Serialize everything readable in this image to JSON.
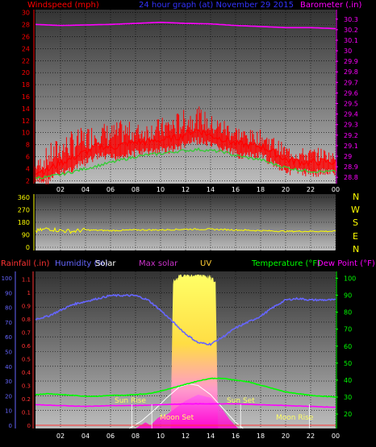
{
  "colors": {
    "background": "#000000",
    "wind": "#ff0000",
    "wind_avg": "#33cc33",
    "barometer": "#ff00ff",
    "direction": "#ffff00",
    "compass": "#ffff00",
    "rainfall": "#ff3333",
    "humidity": "#6666ff",
    "solar": "#ffff33",
    "max_solar": "#ffffff",
    "uv": "#ff66ff",
    "temperature": "#00ff00",
    "dew_point": "#ff00ff",
    "label_solar": "#ffffff",
    "label_max_solar": "#cc33cc",
    "label_uv": "#ffcc33",
    "sun_moon_text": "#ffff66"
  },
  "header": {
    "left_label": "Windspeed (mph)",
    "title": "24 hour graph (at)  November 29 2015",
    "right_label": "Barometer (.in)"
  },
  "compass": [
    "N",
    "W",
    "S",
    "E",
    "N"
  ],
  "bottom_header": {
    "rainfall": "Rainfall (.in)",
    "humidity": "Humidity (%)",
    "solar": "Solar",
    "max_solar": "Max solar",
    "uv": "UV",
    "temperature": "Temperature (°F)",
    "dew_point": "Dew Point (°F)"
  },
  "events": {
    "sun_rise": "Sun Rise",
    "sun_set": "Sun Set",
    "moon_set": "Moon Set",
    "moon_rise": "Moon Rise"
  },
  "chart_data": [
    {
      "type": "line",
      "title": "24 hour graph (at)  November 29 2015",
      "xlabel": "",
      "x_ticks": [
        "02",
        "04",
        "06",
        "08",
        "10",
        "12",
        "14",
        "16",
        "18",
        "20",
        "22",
        "00"
      ],
      "x_range_hours": [
        0,
        24
      ],
      "y_left_label": "Windspeed (mph)",
      "y_left_ticks": [
        2,
        4,
        6,
        8,
        10,
        12,
        14,
        16,
        18,
        20,
        22,
        24,
        26,
        28,
        30
      ],
      "y_left_range": [
        1.5,
        30.5
      ],
      "y_right_label": "Barometer (.in)",
      "y_right_ticks": [
        28.8,
        28.9,
        29.0,
        29.1,
        29.2,
        29.3,
        29.4,
        29.5,
        29.6,
        29.7,
        29.8,
        29.9,
        30.0,
        30.1,
        30.2,
        30.3
      ],
      "y_right_tick_labels": [
        "28.8",
        "28.9",
        "29",
        "29.1",
        "29.2",
        "29.3",
        "29.4",
        "29.5",
        "29.6",
        "29.7",
        "29.8",
        "29.9",
        "30",
        "30.1",
        "30.2",
        "30.3"
      ],
      "y_right_range": [
        28.74,
        30.39
      ],
      "series": [
        {
          "name": "Windspeed (mph)",
          "axis": "left",
          "hours": [
            0,
            1,
            2,
            3,
            4,
            5,
            6,
            7,
            8,
            9,
            10,
            11,
            12,
            13,
            14,
            15,
            16,
            17,
            18,
            19,
            20,
            21,
            22,
            23,
            24
          ],
          "values": [
            3.5,
            3.8,
            5.0,
            5.8,
            6.8,
            7.8,
            7.5,
            8.0,
            8.4,
            8.5,
            8.8,
            9.0,
            9.8,
            10.5,
            9.5,
            9.0,
            8.2,
            7.8,
            7.8,
            6.8,
            5.5,
            5.2,
            5.0,
            5.2,
            5.0
          ],
          "peaks": [
            5,
            8,
            9.5,
            10.5,
            11,
            12,
            11.5,
            12.2,
            11.5,
            12,
            12.5,
            13.2,
            14,
            14.5,
            13,
            12.5,
            11.5,
            10.5,
            10.5,
            9.5,
            8,
            7.5,
            7.5,
            7.5,
            6.5
          ]
        },
        {
          "name": "Average windspeed",
          "axis": "left",
          "hours": [
            0,
            1,
            2,
            3,
            4,
            5,
            6,
            7,
            8,
            9,
            10,
            11,
            12,
            13,
            14,
            15,
            16,
            17,
            18,
            19,
            20,
            21,
            22,
            23,
            24
          ],
          "values": [
            2.5,
            2.6,
            3.0,
            3.5,
            4.0,
            4.5,
            5.0,
            5.5,
            6.0,
            6.3,
            6.5,
            6.8,
            7.0,
            7.2,
            7.0,
            6.8,
            6.2,
            5.8,
            5.5,
            4.8,
            4.2,
            3.8,
            3.6,
            3.5,
            3.5
          ]
        },
        {
          "name": "Barometer (.in)",
          "axis": "right",
          "hours": [
            0,
            2,
            4,
            6,
            8,
            10,
            12,
            14,
            16,
            18,
            20,
            22,
            24
          ],
          "values": [
            30.25,
            30.24,
            30.245,
            30.25,
            30.26,
            30.27,
            30.26,
            30.255,
            30.24,
            30.23,
            30.22,
            30.22,
            30.21
          ]
        }
      ]
    },
    {
      "type": "line",
      "title": "",
      "x_ticks": [
        "02",
        "04",
        "06",
        "08",
        "10",
        "12",
        "14",
        "16",
        "18",
        "20",
        "22",
        "00"
      ],
      "y_ticks": [
        0,
        90,
        180,
        270,
        360
      ],
      "y_range": [
        0,
        360
      ],
      "series": [
        {
          "name": "Wind direction",
          "hours": [
            0,
            1,
            2,
            3,
            4,
            6,
            8,
            10,
            12,
            14,
            16,
            18,
            20,
            22,
            24
          ],
          "values": [
            115,
            135,
            120,
            115,
            125,
            120,
            125,
            125,
            130,
            130,
            125,
            120,
            115,
            115,
            115
          ]
        }
      ]
    },
    {
      "type": "area",
      "title": "",
      "x_ticks": [
        "02",
        "04",
        "06",
        "08",
        "10",
        "12",
        "14",
        "16",
        "18",
        "20",
        "22",
        "00"
      ],
      "y_left_label": "Rainfall (.in)",
      "y_left_ticks": [
        0,
        0.1,
        0.2,
        0.3,
        0.4,
        0.5,
        0.6,
        0.7,
        0.8,
        0.9,
        1,
        1.1
      ],
      "y_left_range": [
        0,
        1.12
      ],
      "y_left2_label": "Humidity (%)",
      "y_left2_ticks": [
        0,
        10,
        20,
        30,
        40,
        50,
        60,
        70,
        80,
        90,
        100
      ],
      "y_left2_range": [
        0,
        100
      ],
      "y_right_label": "Temperature (°F)",
      "y_right_ticks": [
        20,
        30,
        40,
        50,
        60,
        70,
        80,
        90,
        100
      ],
      "y_right_range": [
        11.5,
        104
      ],
      "series": [
        {
          "name": "Humidity (%)",
          "axis": "left2",
          "hours": [
            0,
            1,
            2,
            3,
            4,
            5,
            6,
            7,
            8,
            9,
            10,
            11,
            12,
            13,
            14,
            15,
            16,
            17,
            18,
            19,
            20,
            21,
            22,
            23,
            24
          ],
          "values": [
            72,
            74,
            78,
            82,
            84,
            86,
            88,
            88,
            88,
            85,
            78,
            70,
            62,
            56,
            55,
            60,
            66,
            70,
            74,
            80,
            85,
            86,
            85,
            85,
            85
          ]
        },
        {
          "name": "Solar",
          "axis": "solar",
          "hours": [
            10.8,
            11.0,
            11.5,
            12.0,
            12.5,
            13.0,
            13.5,
            14.0,
            14.4,
            14.6
          ],
          "values": [
            0,
            95,
            100,
            100,
            100,
            100,
            100,
            98,
            95,
            0
          ]
        },
        {
          "name": "Max solar",
          "axis": "solar",
          "hours": [
            7.5,
            8.5,
            9.5,
            10.5,
            11.5,
            12.3,
            13.0,
            14.0,
            15.0,
            16.0,
            16.6
          ],
          "values": [
            0,
            5,
            12,
            20,
            27,
            29,
            28,
            22,
            13,
            4,
            0
          ]
        },
        {
          "name": "UV",
          "axis": "solar",
          "hours": [
            8.0,
            8.8,
            9.2,
            9.8,
            10.5,
            11.0,
            12.0,
            13.0,
            14.0,
            15.0,
            15.5,
            16.2
          ],
          "values": [
            0,
            4,
            2,
            7,
            9,
            12,
            18,
            22,
            20,
            12,
            6,
            0
          ]
        },
        {
          "name": "Temperature (°F)",
          "axis": "right",
          "hours": [
            0,
            1,
            2,
            3,
            4,
            5,
            6,
            7,
            8,
            9,
            10,
            11,
            12,
            13,
            14,
            15,
            16,
            17,
            18,
            19,
            20,
            21,
            22,
            23,
            24
          ],
          "values": [
            31.5,
            32,
            31.5,
            31,
            30.5,
            30.5,
            31,
            31,
            31.5,
            32,
            33.5,
            35.5,
            37.5,
            39.5,
            41,
            41,
            40,
            39,
            37,
            35,
            33,
            32,
            31,
            30.5,
            30
          ]
        },
        {
          "name": "Dew Point (°F)",
          "axis": "right",
          "hours": [
            0,
            2,
            4,
            6,
            8,
            10,
            12,
            14,
            16,
            18,
            20,
            22,
            24
          ],
          "values": [
            25.5,
            25,
            24.5,
            25,
            25,
            25.5,
            26,
            26,
            26,
            25.5,
            25,
            24.5,
            24
          ]
        },
        {
          "name": "Rainfall (.in)",
          "axis": "left",
          "hours": [
            0,
            24
          ],
          "values": [
            0,
            0
          ]
        }
      ],
      "markers": [
        {
          "label": "Sun Rise",
          "hour": 7.7
        },
        {
          "label": "Moon Set",
          "hour": 9.3
        },
        {
          "label": "Sun Set",
          "hour": 16.4
        },
        {
          "label": "Moon Rise",
          "hour": 21.9
        }
      ]
    }
  ]
}
